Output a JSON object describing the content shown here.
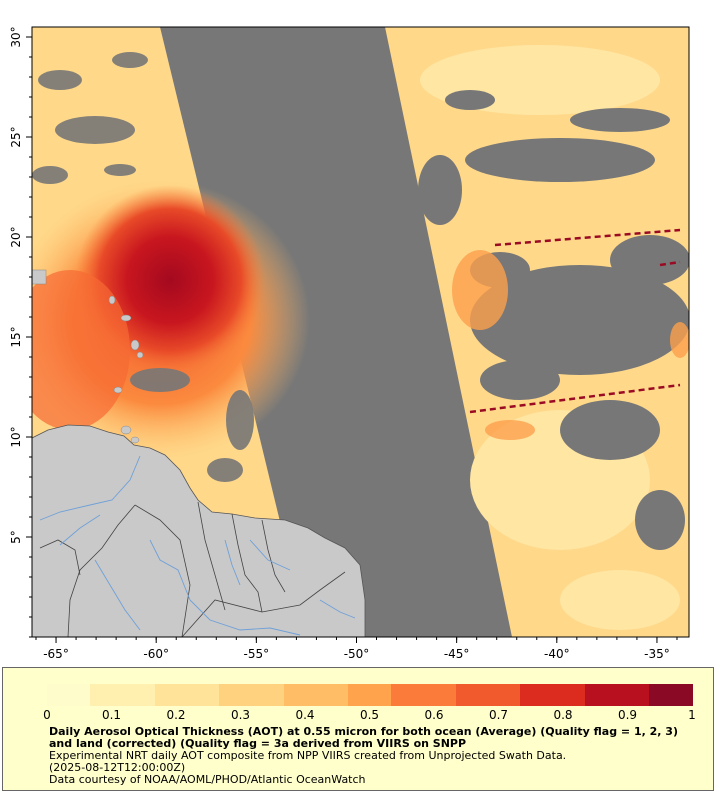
{
  "map": {
    "x_axis": {
      "ticks": [
        "-65°",
        "-60°",
        "-55°",
        "-50°",
        "-45°",
        "-40°",
        "-35°"
      ],
      "values": [
        -65,
        -60,
        -55,
        -50,
        -45,
        -40,
        -35
      ],
      "range": [
        -66.2,
        -33.4
      ]
    },
    "y_axis": {
      "ticks": [
        "5°",
        "10°",
        "15°",
        "20°",
        "25°",
        "30°"
      ],
      "values": [
        5,
        10,
        15,
        20,
        25,
        30
      ],
      "range": [
        0,
        30.5
      ]
    },
    "colors": {
      "no_data": "#777777",
      "land": "#c9c9c9",
      "rivers": "#6fa0d8",
      "borders": "#444444"
    }
  },
  "legend": {
    "colorbar": {
      "min": 0,
      "max": 1,
      "ticks": [
        "0",
        "0.1",
        "0.2",
        "0.3",
        "0.4",
        "0.5",
        "0.6",
        "0.7",
        "0.8",
        "0.9",
        "1"
      ],
      "colors": [
        "#fffccc",
        "#fff0b0",
        "#ffe399",
        "#ffd27f",
        "#ffbe66",
        "#ffa34d",
        "#fb7c3a",
        "#f05a2c",
        "#db2c1f",
        "#b8101f",
        "#8a0a26"
      ]
    },
    "title": "Daily Aerosol Optical Thickness (AOT) at 0.55 micron for both ocean (Average) (Quality flag = 1, 2, 3) and land (corrected) (Quality flag = 3a derived from VIIRS on SNPP",
    "subtitle": "Experimental NRT daily AOT composite from NPP VIIRS created from Unprojected Swath Data.",
    "date": "(2025-08-12T12:00:00Z)",
    "credit": "Data courtesy of NOAA/AOML/PHOD/Atlantic OceanWatch"
  }
}
